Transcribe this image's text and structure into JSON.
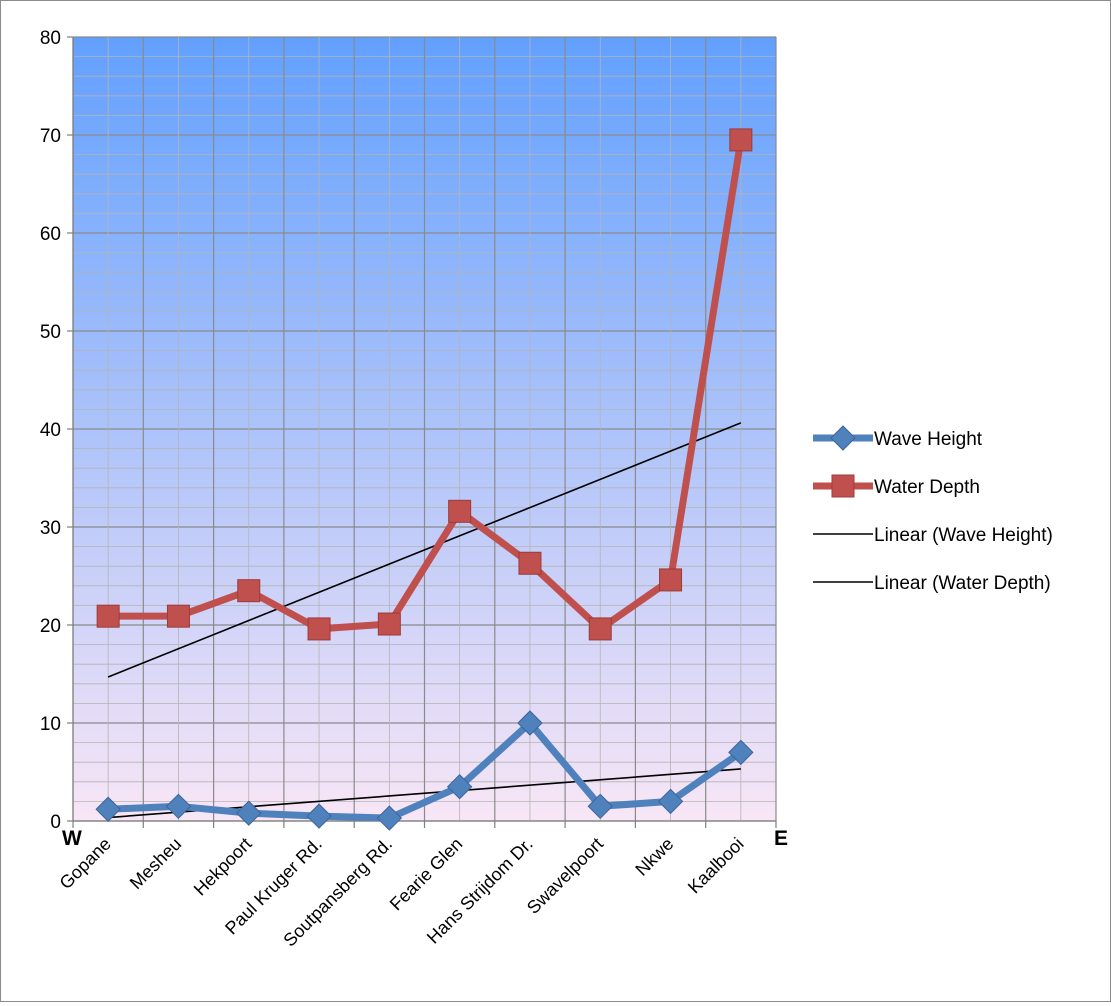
{
  "chart_data": {
    "type": "line",
    "title": "",
    "xlabel": "",
    "ylabel": "",
    "categories": [
      "Gopane",
      "Mesheu",
      "Hekpoort",
      "Paul Kruger Rd.",
      "Soutpansberg Rd.",
      "Fearie Glen",
      "Hans Strijdom Dr.",
      "Swavelpoort",
      "Nkwe",
      "Kaalbooi"
    ],
    "ylim": [
      0,
      80
    ],
    "yticks": [
      0,
      10,
      20,
      30,
      40,
      50,
      60,
      70,
      80
    ],
    "axis_end_labels": {
      "left": "W",
      "right": "E"
    },
    "grid": true,
    "legend_position": "right",
    "series": [
      {
        "name": "Wave Height",
        "values": [
          1.2,
          1.5,
          0.8,
          0.5,
          0.3,
          3.5,
          10.0,
          1.5,
          2.0,
          7.0
        ],
        "color": "#4f81bd",
        "marker": "diamond"
      },
      {
        "name": "Water Depth",
        "values": [
          20.9,
          20.9,
          23.5,
          19.6,
          20.1,
          31.6,
          26.3,
          19.6,
          24.6,
          69.5
        ],
        "color": "#c0504d",
        "marker": "square"
      }
    ],
    "trendlines": [
      {
        "name": "Linear (Wave Height)",
        "of": "Wave Height",
        "color": "#000000"
      },
      {
        "name": "Linear (Water Depth)",
        "of": "Water Depth",
        "color": "#000000"
      }
    ],
    "plot_background": {
      "top": "#62a0fe",
      "bottom": "#f8e6f6"
    }
  }
}
